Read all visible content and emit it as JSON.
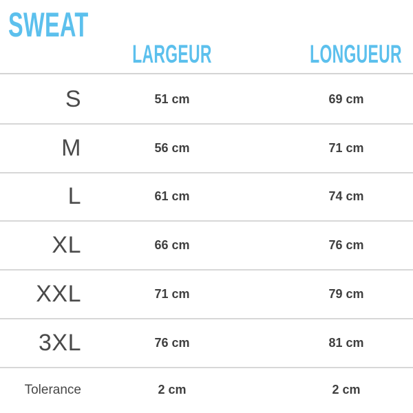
{
  "accent_color": "#5cc0ed",
  "text_color": "#424242",
  "divider_color": "#d7d7d7",
  "header": {
    "title": "SWEAT",
    "columns": {
      "largeur": "LARGEUR",
      "longueur": "LONGUEUR"
    }
  },
  "rows": [
    {
      "size": "S",
      "largeur": "51 cm",
      "longueur": "69 cm"
    },
    {
      "size": "M",
      "largeur": "56 cm",
      "longueur": "71 cm"
    },
    {
      "size": "L",
      "largeur": "61 cm",
      "longueur": "74 cm"
    },
    {
      "size": "XL",
      "largeur": "66 cm",
      "longueur": "76 cm"
    },
    {
      "size": "XXL",
      "largeur": "71 cm",
      "longueur": "79 cm"
    },
    {
      "size": "3XL",
      "largeur": "76 cm",
      "longueur": "81 cm"
    }
  ],
  "tolerance": {
    "label": "Tolerance",
    "largeur": "2 cm",
    "longueur": "2 cm"
  },
  "chart_data": {
    "type": "table",
    "title": "SWEAT",
    "columns": [
      "",
      "LARGEUR",
      "LONGUEUR"
    ],
    "rows": [
      [
        "S",
        "51 cm",
        "69 cm"
      ],
      [
        "M",
        "56 cm",
        "71 cm"
      ],
      [
        "L",
        "61 cm",
        "74 cm"
      ],
      [
        "XL",
        "66 cm",
        "76 cm"
      ],
      [
        "XXL",
        "71 cm",
        "79 cm"
      ],
      [
        "3XL",
        "76 cm",
        "81 cm"
      ],
      [
        "Tolerance",
        "2 cm",
        "2 cm"
      ]
    ]
  }
}
